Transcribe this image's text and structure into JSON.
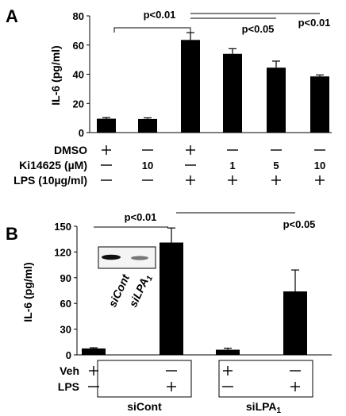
{
  "chart_data": [
    {
      "panel": "A",
      "type": "bar",
      "ylabel": "IL-6 (pg/ml)",
      "ylim": [
        0,
        80
      ],
      "yticks": [
        "0",
        "20",
        "40",
        "60",
        "80"
      ],
      "values": [
        9.5,
        9.3,
        63.5,
        54,
        44.5,
        38.5
      ],
      "errors": [
        0.8,
        0.8,
        5,
        3.5,
        4.5,
        1
      ],
      "conditions": [
        {
          "label": "DMSO",
          "marks": [
            "+",
            "—",
            "+",
            "—",
            "—",
            "—"
          ]
        },
        {
          "label": "Ki14625 (µM)",
          "marks": [
            "—",
            "10",
            "—",
            "1",
            "5",
            "10"
          ]
        },
        {
          "label": "LPS (10µg/ml)",
          "marks": [
            "—",
            "—",
            "+",
            "+",
            "+",
            "+"
          ]
        }
      ],
      "annotations": [
        "p<0.01",
        "p<0.05",
        "p<0.01"
      ]
    },
    {
      "panel": "B",
      "type": "bar",
      "ylabel": "IL-6 (pg/ml)",
      "ylim": [
        0,
        150
      ],
      "yticks": [
        "0",
        "30",
        "60",
        "90",
        "120",
        "150"
      ],
      "values": [
        7.5,
        131,
        6,
        74
      ],
      "errors": [
        0.8,
        17,
        1.8,
        25
      ],
      "conditions": [
        {
          "label": "Veh",
          "marks": [
            "+",
            "—",
            "+",
            "—"
          ]
        },
        {
          "label": "LPS",
          "marks": [
            "—",
            "+",
            "—",
            "+"
          ]
        }
      ],
      "groups": [
        "siCont",
        "siLPA",
        "1"
      ],
      "inset_labels": [
        "siCont",
        "siLPA",
        "1"
      ],
      "annotations": [
        "p<0.01",
        "p<0.05"
      ]
    }
  ]
}
